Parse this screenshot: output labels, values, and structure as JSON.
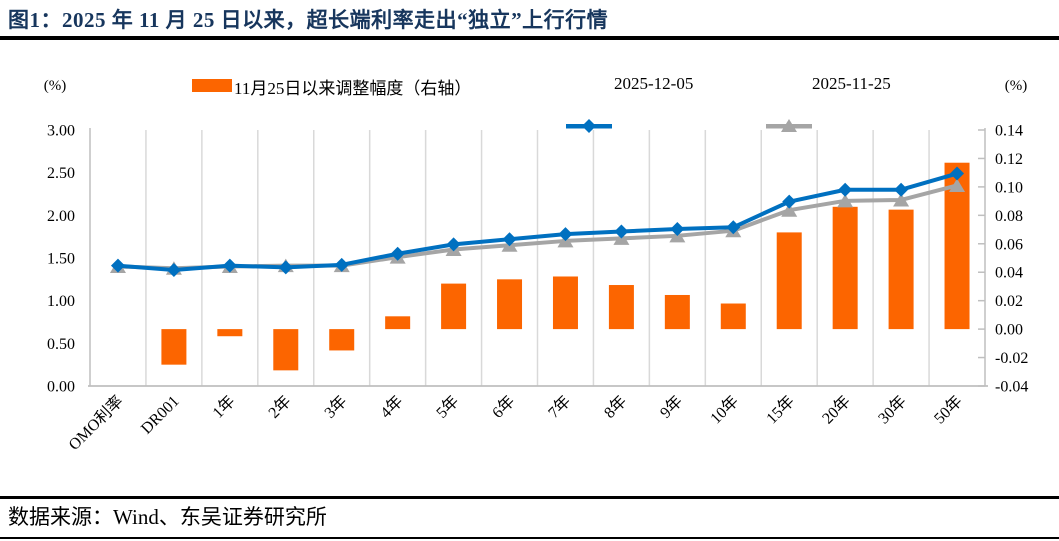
{
  "header": {
    "title": "图1：2025 年 11 月 25 日以来，超长端利率走出“独立”上行行情"
  },
  "footer": {
    "source": "数据来源：Wind、东吴证券研究所"
  },
  "colors": {
    "title": "#17365D",
    "bar_orange": "#FC6500",
    "line_blue": "#0070C0",
    "line_gray": "#A5A5A5",
    "gridline": "#D9D9D9",
    "axis_line": "#BFBFBF",
    "text": "#000000"
  },
  "chart_data": {
    "type": "bar+line",
    "title": "",
    "legend_position": "top",
    "grid": "vertical-only",
    "categories": [
      "OMO利率",
      "DR001",
      "1年",
      "2年",
      "3年",
      "4年",
      "5年",
      "6年",
      "7年",
      "8年",
      "9年",
      "10年",
      "15年",
      "20年",
      "30年",
      "50年"
    ],
    "bar_series": {
      "name": "11月25日以来调整幅度（右轴）",
      "axis": "right",
      "color": "#FC6500",
      "values": [
        0,
        -0.025,
        -0.005,
        -0.029,
        -0.015,
        0.009,
        0.032,
        0.035,
        0.037,
        0.031,
        0.024,
        0.018,
        0.068,
        0.086,
        0.084,
        0.117
      ]
    },
    "line_series": [
      {
        "name": "2025-12-05",
        "axis": "left",
        "color": "#0070C0",
        "marker": "diamond",
        "values": [
          1.41,
          1.36,
          1.41,
          1.39,
          1.42,
          1.55,
          1.66,
          1.72,
          1.78,
          1.81,
          1.84,
          1.86,
          2.16,
          2.3,
          2.3,
          2.49
        ]
      },
      {
        "name": "2025-11-25",
        "axis": "left",
        "color": "#A5A5A5",
        "marker": "triangle",
        "values": [
          1.4,
          1.38,
          1.4,
          1.41,
          1.41,
          1.51,
          1.6,
          1.65,
          1.7,
          1.73,
          1.76,
          1.82,
          2.06,
          2.17,
          2.18,
          2.35
        ]
      }
    ],
    "left_axis": {
      "label": "(%)",
      "min": 0.0,
      "max": 3.0,
      "step": 0.5,
      "ticks": [
        "0.00",
        "0.50",
        "1.00",
        "1.50",
        "2.00",
        "2.50",
        "3.00"
      ]
    },
    "right_axis": {
      "label": "(%)",
      "min": -0.04,
      "max": 0.14,
      "step": 0.02,
      "ticks": [
        "-0.04",
        "-0.02",
        "0.00",
        "0.02",
        "0.04",
        "0.06",
        "0.08",
        "0.10",
        "0.12",
        "0.14"
      ]
    }
  }
}
